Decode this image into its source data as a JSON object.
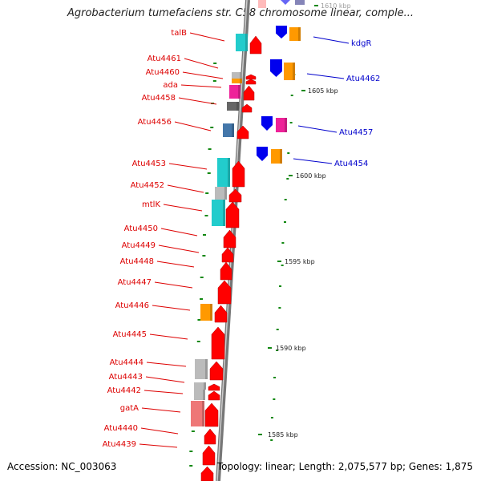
{
  "title": "Agrobacterium tumefaciens str. C58 chromosome linear, comple...",
  "footer": {
    "accession": "Accession: NC_003063",
    "topology": "Topology: linear; Length: 2,075,577 bp; Genes: 1,875"
  },
  "colors": {
    "red": "#ff0000",
    "cyan": "#22cccc",
    "orange": "#ff9900",
    "blue": "#0000ee",
    "magenta": "#ee2299",
    "gray": "#bbbbbb",
    "darkgray": "#666666",
    "steelblue": "#4477aa",
    "pink": "#ee7777",
    "tick": "#118811",
    "left_label": "#dd0000",
    "right_label": "#0000cc"
  },
  "kbp_markers": [
    {
      "label": "1610 kbp"
    },
    {
      "label": "1605 kbp"
    },
    {
      "label": "1600 kbp"
    },
    {
      "label": "1595 kbp"
    },
    {
      "label": "1590 kbp"
    },
    {
      "label": "1585 kbp"
    }
  ],
  "left_genes": [
    {
      "name": "talB"
    },
    {
      "name": "Atu4461"
    },
    {
      "name": "Atu4460"
    },
    {
      "name": "ada"
    },
    {
      "name": "Atu4458"
    },
    {
      "name": "Atu4456"
    },
    {
      "name": "Atu4453"
    },
    {
      "name": "Atu4452"
    },
    {
      "name": "mtlK"
    },
    {
      "name": "Atu4450"
    },
    {
      "name": "Atu4449"
    },
    {
      "name": "Atu4448"
    },
    {
      "name": "Atu4447"
    },
    {
      "name": "Atu4446"
    },
    {
      "name": "Atu4445"
    },
    {
      "name": "Atu4444"
    },
    {
      "name": "Atu4443"
    },
    {
      "name": "Atu4442"
    },
    {
      "name": "gatA"
    },
    {
      "name": "Atu4440"
    },
    {
      "name": "Atu4439"
    }
  ],
  "right_genes": [
    {
      "name": "kdgR"
    },
    {
      "name": "Atu4462"
    },
    {
      "name": "Atu4457"
    },
    {
      "name": "Atu4454"
    }
  ]
}
